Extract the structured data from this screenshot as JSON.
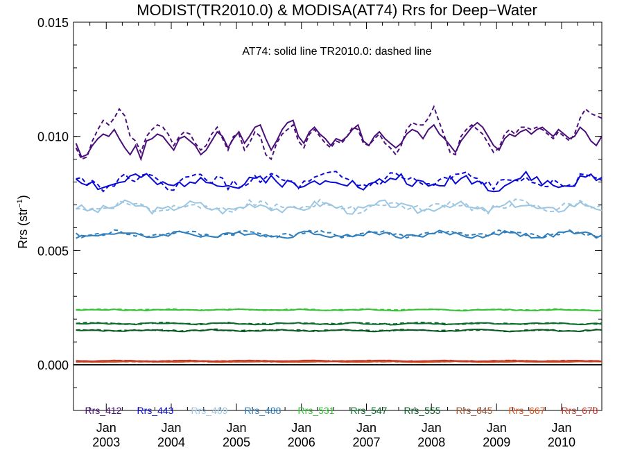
{
  "chart_data": {
    "type": "line",
    "title": "MODIST(TR2010.0) & MODISA(AT74)  Rrs for Deep−Water",
    "annotation": "AT74: solid line   TR2010.0: dashed line",
    "ylabel": "Rrs (str",
    "ylabel_sup": "−1",
    "ylabel_close": ")",
    "xlabel": "",
    "xlim": [
      "2002-07-01",
      "2010-08-15"
    ],
    "ylim": [
      -0.002,
      0.015
    ],
    "yticks": [
      {
        "value": 0.0,
        "label": "0.000"
      },
      {
        "value": 0.005,
        "label": "0.005"
      },
      {
        "value": 0.01,
        "label": "0.010"
      },
      {
        "value": 0.015,
        "label": "0.015"
      }
    ],
    "xticks": [
      {
        "date": "2003-01-01",
        "month": "Jan",
        "year": "2003"
      },
      {
        "date": "2004-01-01",
        "month": "Jan",
        "year": "2004"
      },
      {
        "date": "2005-01-01",
        "month": "Jan",
        "year": "2005"
      },
      {
        "date": "2006-01-01",
        "month": "Jan",
        "year": "2006"
      },
      {
        "date": "2007-01-01",
        "month": "Jan",
        "year": "2007"
      },
      {
        "date": "2008-01-01",
        "month": "Jan",
        "year": "2008"
      },
      {
        "date": "2009-01-01",
        "month": "Jan",
        "year": "2009"
      },
      {
        "date": "2010-01-01",
        "month": "Jan",
        "year": "2010"
      }
    ],
    "line_styles": {
      "AT74": "solid",
      "TR2010.0": "dashed"
    },
    "zero_line": true,
    "series": [
      {
        "name": "Rrs_412",
        "color": "#4b0f7a",
        "base": 0.01,
        "amp": 0.00055,
        "seed": 1,
        "solid": [
          0.0097,
          0.0091,
          0.0092,
          0.0096,
          0.0099,
          0.0101,
          0.01,
          0.0103,
          0.0099,
          0.0095,
          0.0092,
          0.0096,
          0.009,
          0.0098,
          0.0099,
          0.0101,
          0.01,
          0.0097,
          0.0094,
          0.0099,
          0.01,
          0.0098,
          0.0096,
          0.0092,
          0.0094,
          0.0098,
          0.0102,
          0.01,
          0.0095,
          0.0099,
          0.0102,
          0.0097,
          0.01,
          0.0104,
          0.0105,
          0.0099,
          0.0094,
          0.0098,
          0.0103,
          0.0106,
          0.0107,
          0.01,
          0.0097,
          0.0102,
          0.0104,
          0.0101,
          0.0099,
          0.0096,
          0.0099,
          0.0098,
          0.01,
          0.0103,
          0.0105,
          0.0098,
          0.0096,
          0.01,
          0.0102,
          0.0099,
          0.0097,
          0.0095,
          0.0097,
          0.0101,
          0.0103,
          0.0102,
          0.0099,
          0.0103,
          0.0105,
          0.0101,
          0.0099,
          0.0096,
          0.0093,
          0.0098,
          0.0101,
          0.0104,
          0.0106,
          0.0104,
          0.01,
          0.0096,
          0.0094,
          0.0099,
          0.0101,
          0.01,
          0.0102,
          0.0103,
          0.0101,
          0.0103,
          0.0104,
          0.0102,
          0.01,
          0.0103,
          0.0101,
          0.0099,
          0.01,
          0.0104,
          0.0102,
          0.0098,
          0.0096,
          0.01,
          0.0103,
          0.0107,
          0.0104,
          0.01,
          0.0098
        ],
        "dashed": [
          0.0095,
          0.009,
          0.0091,
          0.0098,
          0.0103,
          0.0107,
          0.0105,
          0.0108,
          0.0112,
          0.0109,
          0.01,
          0.0098,
          0.0093,
          0.01,
          0.0103,
          0.0105,
          0.0104,
          0.0101,
          0.0096,
          0.01,
          0.0102,
          0.0101,
          0.0097,
          0.0094,
          0.0096,
          0.0101,
          0.0104,
          0.0099,
          0.0094,
          0.01,
          0.0101,
          0.0094,
          0.0097,
          0.0102,
          0.01,
          0.0092,
          0.009,
          0.0097,
          0.0101,
          0.0103,
          0.0105,
          0.0098,
          0.0095,
          0.0101,
          0.0103,
          0.01,
          0.0097,
          0.0095,
          0.0098,
          0.0097,
          0.01,
          0.0104,
          0.0103,
          0.0097,
          0.0096,
          0.0099,
          0.0101,
          0.0097,
          0.0095,
          0.0092,
          0.0096,
          0.0103,
          0.0106,
          0.0105,
          0.0105,
          0.0108,
          0.0113,
          0.0106,
          0.01,
          0.0093,
          0.0092,
          0.01,
          0.0103,
          0.0105,
          0.0103,
          0.0101,
          0.0097,
          0.0093,
          0.0095,
          0.0101,
          0.0103,
          0.0101,
          0.0104,
          0.0104,
          0.0103,
          0.0104,
          0.0103,
          0.0101,
          0.0099,
          0.0102,
          0.01,
          0.0098,
          0.0101,
          0.0108,
          0.0112,
          0.011,
          0.0109,
          0.0108,
          0.0105,
          0.0101,
          0.0099,
          0.0096,
          0.0094
        ]
      },
      {
        "name": "Rrs_443",
        "color": "#0a0ad6",
        "base": 0.008,
        "amp": 0.00035,
        "seed": 2
      },
      {
        "name": "Rrs_469",
        "color": "#9cc6e2",
        "base": 0.0069,
        "amp": 0.00025,
        "seed": 3
      },
      {
        "name": "Rrs_488",
        "color": "#2f7fbe",
        "base": 0.0057,
        "amp": 0.00015,
        "seed": 4
      },
      {
        "name": "Rrs_531",
        "color": "#35c335",
        "base": 0.0024,
        "amp": 3e-05,
        "seed": 5
      },
      {
        "name": "Rrs_547",
        "color": "#0a6b2c",
        "base": 0.0018,
        "amp": 4e-05,
        "seed": 6
      },
      {
        "name": "Rrs_555",
        "color": "#0a5a25",
        "base": 0.0015,
        "amp": 4e-05,
        "seed": 7
      },
      {
        "name": "Rrs_645",
        "color": "#a0522d",
        "base": 0.00015,
        "amp": 2e-05,
        "seed": 8
      },
      {
        "name": "Rrs_667",
        "color": "#d2541e",
        "base": 0.00013,
        "amp": 2e-05,
        "seed": 9
      },
      {
        "name": "Rrs_678",
        "color": "#c0392b",
        "base": 0.00017,
        "amp": 2e-05,
        "seed": 10
      }
    ]
  }
}
